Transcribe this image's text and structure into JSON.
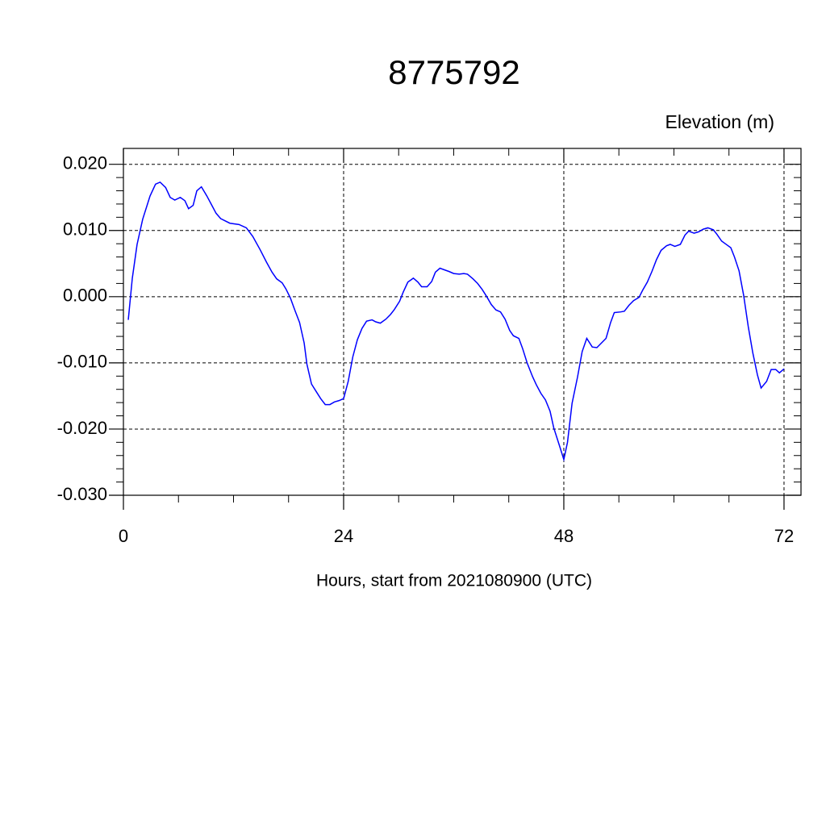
{
  "chart_data": {
    "type": "line",
    "title": "8775792",
    "y_label": "Elevation (m)",
    "x_label": "Hours, start from 2021080900 (UTC)",
    "x": [
      0.53,
      0.97,
      1.49,
      2.1,
      2.9,
      3.5,
      4.0,
      4.6,
      5.1,
      5.6,
      6.2,
      6.7,
      7.1,
      7.6,
      8.0,
      8.5,
      9.1,
      9.6,
      10.1,
      10.6,
      11.6,
      12.6,
      13.4,
      14.1,
      14.9,
      15.6,
      16.2,
      16.7,
      17.3,
      17.7,
      18.2,
      18.7,
      19.2,
      19.7,
      20.0,
      20.5,
      21.0,
      21.5,
      22.0,
      22.5,
      23.0,
      23.5,
      24.0,
      24.5,
      25.0,
      25.5,
      26.0,
      26.5,
      27.1,
      27.5,
      28.0,
      28.6,
      29.1,
      29.5,
      30.1,
      30.5,
      31.0,
      31.6,
      32.1,
      32.5,
      33.1,
      33.6,
      34.0,
      34.5,
      35.1,
      35.5,
      36.0,
      36.6,
      37.1,
      37.5,
      38.1,
      38.6,
      39.1,
      39.6,
      40.1,
      40.6,
      41.1,
      41.6,
      42.1,
      42.5,
      43.1,
      43.5,
      44.0,
      44.6,
      45.0,
      45.5,
      46.0,
      46.5,
      46.9,
      47.5,
      48.0,
      48.4,
      48.9,
      49.5,
      50.0,
      50.5,
      51.1,
      51.6,
      52.1,
      52.6,
      53.1,
      53.5,
      54.2,
      54.6,
      55.1,
      55.6,
      56.2,
      56.6,
      57.1,
      57.6,
      58.1,
      58.6,
      59.2,
      59.6,
      60.1,
      60.7,
      61.2,
      61.6,
      62.2,
      62.7,
      63.2,
      63.7,
      64.3,
      64.7,
      65.2,
      65.8,
      66.2,
      66.6,
      67.1,
      67.6,
      68.1,
      68.6,
      69.1,
      69.5,
      70.1,
      70.6,
      71.1,
      71.5,
      72.0
    ],
    "series": [
      {
        "name": "Elevation",
        "color": "#0000ff",
        "values": [
          -0.0035,
          0.0028,
          0.0079,
          0.0117,
          0.0152,
          0.017,
          0.0173,
          0.0165,
          0.015,
          0.0146,
          0.015,
          0.0145,
          0.0133,
          0.0138,
          0.016,
          0.0166,
          0.0152,
          0.0139,
          0.0126,
          0.0118,
          0.0111,
          0.0109,
          0.0104,
          0.0091,
          0.0071,
          0.0052,
          0.0037,
          0.0027,
          0.0021,
          0.0012,
          -0.0002,
          -0.0021,
          -0.0039,
          -0.007,
          -0.0102,
          -0.0132,
          -0.0143,
          -0.0154,
          -0.0163,
          -0.0163,
          -0.0159,
          -0.0157,
          -0.0154,
          -0.0128,
          -0.0091,
          -0.0065,
          -0.0048,
          -0.0037,
          -0.0035,
          -0.0038,
          -0.004,
          -0.0034,
          -0.0027,
          -0.002,
          -0.0007,
          0.0007,
          0.0022,
          0.0028,
          0.0022,
          0.0015,
          0.0015,
          0.0023,
          0.0037,
          0.0043,
          0.004,
          0.0038,
          0.0035,
          0.0034,
          0.0035,
          0.0034,
          0.0027,
          0.002,
          0.0011,
          0.0,
          -0.0012,
          -0.002,
          -0.0023,
          -0.0034,
          -0.0051,
          -0.0059,
          -0.0063,
          -0.0078,
          -0.01,
          -0.0121,
          -0.0133,
          -0.0146,
          -0.0156,
          -0.0173,
          -0.0198,
          -0.0224,
          -0.0246,
          -0.022,
          -0.0161,
          -0.0121,
          -0.0083,
          -0.0063,
          -0.0076,
          -0.0077,
          -0.007,
          -0.0063,
          -0.0039,
          -0.0024,
          -0.0023,
          -0.0022,
          -0.0013,
          -0.0006,
          -0.0001,
          0.001,
          0.0022,
          0.0038,
          0.0056,
          0.007,
          0.0077,
          0.0079,
          0.0076,
          0.0079,
          0.0093,
          0.0099,
          0.0096,
          0.0098,
          0.0102,
          0.0104,
          0.0101,
          0.0094,
          0.0084,
          0.0078,
          0.0074,
          0.006,
          0.0039,
          0.0002,
          -0.0045,
          -0.0085,
          -0.0118,
          -0.0138,
          -0.0128,
          -0.011,
          -0.011,
          -0.0115,
          -0.0109
        ]
      }
    ],
    "xlim": [
      0,
      73.85
    ],
    "xticks": [
      0,
      24,
      48,
      72
    ],
    "ylim": [
      -0.03,
      0.0224
    ],
    "yticks": [
      {
        "value": 0.02,
        "label": "0.020"
      },
      {
        "value": 0.01,
        "label": "0.010"
      },
      {
        "value": 0,
        "label": "0.000"
      },
      {
        "value": -0.01,
        "label": "-0.010"
      },
      {
        "value": -0.02,
        "label": "-0.020"
      },
      {
        "value": -0.03,
        "label": "-0.030"
      }
    ],
    "grid": true
  }
}
